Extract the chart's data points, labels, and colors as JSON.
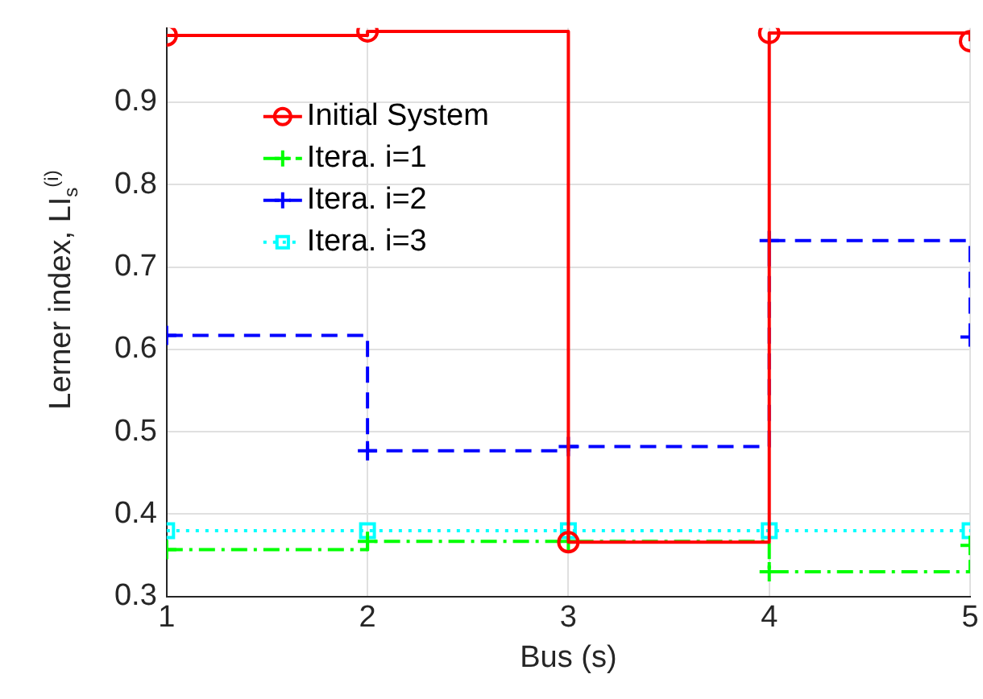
{
  "chart_data": {
    "type": "step",
    "xlabel": "Bus (s)",
    "ylabel": "Lerner index, LI$_{s}$$^{(i)}$",
    "x": [
      1,
      2,
      3,
      4,
      5
    ],
    "series": [
      {
        "name": "Initial System",
        "color": "#ff0000",
        "marker": "circle",
        "line_style": "solid",
        "values": [
          0.981,
          0.986,
          0.366,
          0.984,
          0.974
        ]
      },
      {
        "name": "Itera. i=1",
        "color": "#00ff00",
        "marker": "cross",
        "line_style": "dashdot",
        "values": [
          0.357,
          0.367,
          0.367,
          0.33,
          0.362
        ]
      },
      {
        "name": "Itera. i=2",
        "color": "#0000ff",
        "marker": "cross",
        "line_style": "dashed",
        "values": [
          0.617,
          0.477,
          0.482,
          0.732,
          0.615
        ]
      },
      {
        "name": "Itera. i=3",
        "color": "#00ffff",
        "marker": "square",
        "line_style": "dotted",
        "values": [
          0.38,
          0.38,
          0.38,
          0.38,
          0.38
        ]
      }
    ],
    "xlim": [
      1,
      5
    ],
    "xticks": [
      1,
      2,
      3,
      4,
      5
    ],
    "ylim": [
      0.3,
      0.99
    ],
    "yticks": [
      0.3,
      0.4,
      0.5,
      0.6,
      0.7,
      0.8,
      0.9
    ],
    "grid": true,
    "legend": "top left"
  }
}
